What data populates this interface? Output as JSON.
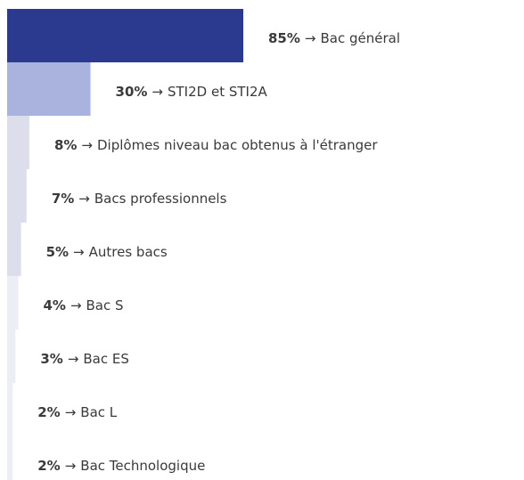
{
  "chart_data": {
    "type": "bar",
    "categories": [
      "Bac général",
      "STI2D et STI2A",
      "Diplômes niveau bac obtenus à l'étranger",
      "Bacs professionnels",
      "Autres bacs",
      "Bac S",
      "Bac ES",
      "Bac L",
      "Bac Technologique"
    ],
    "values": [
      85,
      30,
      8,
      7,
      5,
      4,
      3,
      2,
      2
    ],
    "value_labels": [
      "85%",
      "30%",
      "8%",
      "7%",
      "5%",
      "4%",
      "3%",
      "2%",
      "2%"
    ],
    "separator": "→",
    "colors": [
      "#2b3a8e",
      "#a9b3de",
      "#dcdfeb",
      "#dcdfeb",
      "#dcdfeb",
      "#eceef4",
      "#eceef4",
      "#eceef4",
      "#eceef4"
    ]
  }
}
